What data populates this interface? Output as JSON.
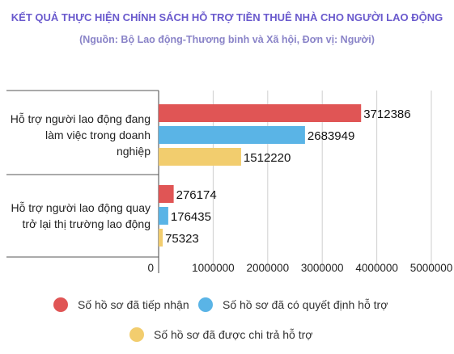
{
  "chart_data": {
    "type": "bar",
    "orientation": "horizontal",
    "title": "KẾT QUẢ THỰC HIỆN CHÍNH SÁCH HỖ TRỢ TIỀN THUÊ NHÀ CHO NGƯỜI LAO ĐỘNG",
    "subtitle": "(Nguồn:  Bộ Lao động-Thương binh và Xã hội, Đơn vị: Người)",
    "categories": [
      "Hỗ trợ người lao động đang làm việc trong doanh nghiệp",
      "Hỗ trợ người lao động quay trở lại thị trường lao động"
    ],
    "series": [
      {
        "name": "Số hồ sơ đã tiếp nhận",
        "values": [
          3712386,
          276174
        ],
        "color": "#e05555"
      },
      {
        "name": "Số hồ sơ đã có quyết định hỗ trợ",
        "values": [
          2683949,
          176435
        ],
        "color": "#5ab4e6"
      },
      {
        "name": "Số hồ sơ đã được chi trả hỗ trợ",
        "values": [
          1512220,
          75323
        ],
        "color": "#f2cd6e"
      }
    ],
    "xticks": [
      "0",
      "1000000",
      "2000000",
      "3000000",
      "4000000",
      "5000000"
    ],
    "xlim": [
      0,
      5000000
    ],
    "grid": true,
    "legend_position": "bottom"
  }
}
